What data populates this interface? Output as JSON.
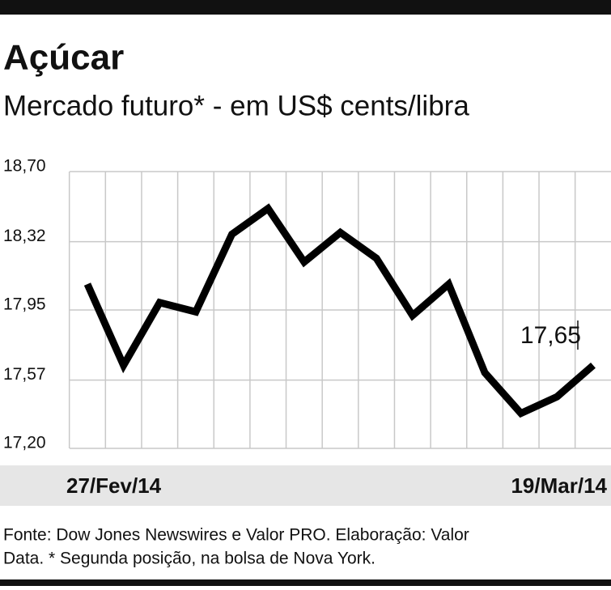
{
  "chart_data": {
    "type": "line",
    "title": "Açúcar",
    "subtitle": "Mercado futuro* - em US$ cents/libra",
    "categories": [
      "27/Fev/14",
      null,
      null,
      null,
      null,
      null,
      null,
      null,
      null,
      null,
      null,
      null,
      null,
      null,
      "19/Mar/14"
    ],
    "values": [
      18.09,
      17.65,
      17.99,
      17.94,
      18.36,
      18.5,
      18.21,
      18.37,
      18.23,
      17.92,
      18.09,
      17.61,
      17.39,
      17.48,
      17.65
    ],
    "value_labels": [
      null,
      null,
      null,
      null,
      null,
      null,
      null,
      null,
      null,
      null,
      null,
      null,
      null,
      null,
      "17,65"
    ],
    "color": "#000000",
    "ylim": [
      17.2,
      18.7
    ],
    "yticks": [
      {
        "value": 17.2,
        "label": "17,20"
      },
      {
        "value": 17.57,
        "label": "17,57"
      },
      {
        "value": 17.95,
        "label": "17,95"
      },
      {
        "value": 18.32,
        "label": "18,32"
      },
      {
        "value": 18.7,
        "label": "18,70"
      }
    ],
    "grid": true,
    "source": "Fonte: Dow Jones Newswires e Valor PRO. Elaboração: Valor",
    "source_2": "Data. * Segunda posição, na bolsa de Nova York."
  }
}
